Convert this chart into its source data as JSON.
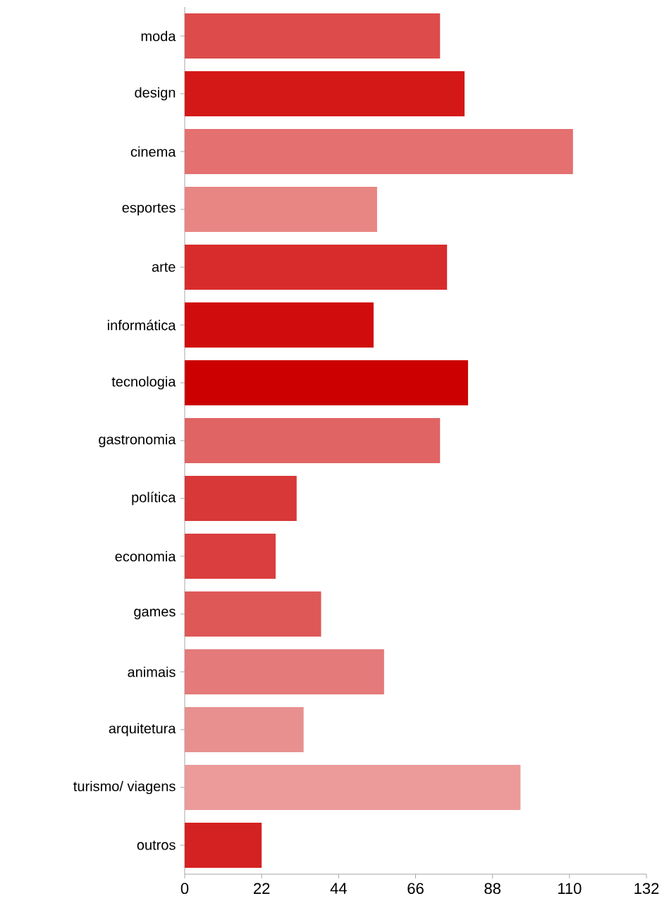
{
  "chart_data": {
    "type": "bar",
    "orientation": "horizontal",
    "categories": [
      "moda",
      "design",
      "cinema",
      "esportes",
      "arte",
      "informática",
      "tecnologia",
      "gastronomia",
      "política",
      "economia",
      "games",
      "animais",
      "arquitetura",
      "turismo/ viagens",
      "outros"
    ],
    "values": [
      73,
      80,
      111,
      55,
      75,
      54,
      81,
      73,
      32,
      26,
      39,
      57,
      34,
      96,
      22
    ],
    "colors": [
      "#dd4b4b",
      "#d41818",
      "#e47070",
      "#e88683",
      "#d82c2c",
      "#d10c0c",
      "#cc0000",
      "#e06464",
      "#d83838",
      "#da3e3e",
      "#de5858",
      "#e47a7a",
      "#e89090",
      "#ec9a9a",
      "#d42222"
    ],
    "xlim": [
      0,
      132
    ],
    "xticks": [
      0,
      22,
      44,
      66,
      88,
      110,
      132
    ],
    "grid": false
  }
}
